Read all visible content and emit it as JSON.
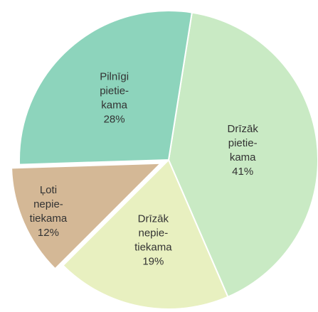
{
  "chart_data": {
    "type": "pie",
    "categories": [
      [
        "Drīzāk",
        "pietie-",
        "kama"
      ],
      [
        "Drīzāk",
        "nepie-",
        "tiekama"
      ],
      [
        "Ļoti",
        "nepie-",
        "tiekama"
      ],
      [
        "Pilnīgi",
        "pietie-",
        "kama"
      ]
    ],
    "values": [
      41,
      19,
      12,
      28
    ],
    "value_labels": [
      "41%",
      "19%",
      "12%",
      "28%"
    ],
    "colors": [
      "#c9eac4",
      "#e8f0c0",
      "#d4b896",
      "#8dd4bc"
    ],
    "exploded": [
      false,
      false,
      true,
      false
    ]
  }
}
